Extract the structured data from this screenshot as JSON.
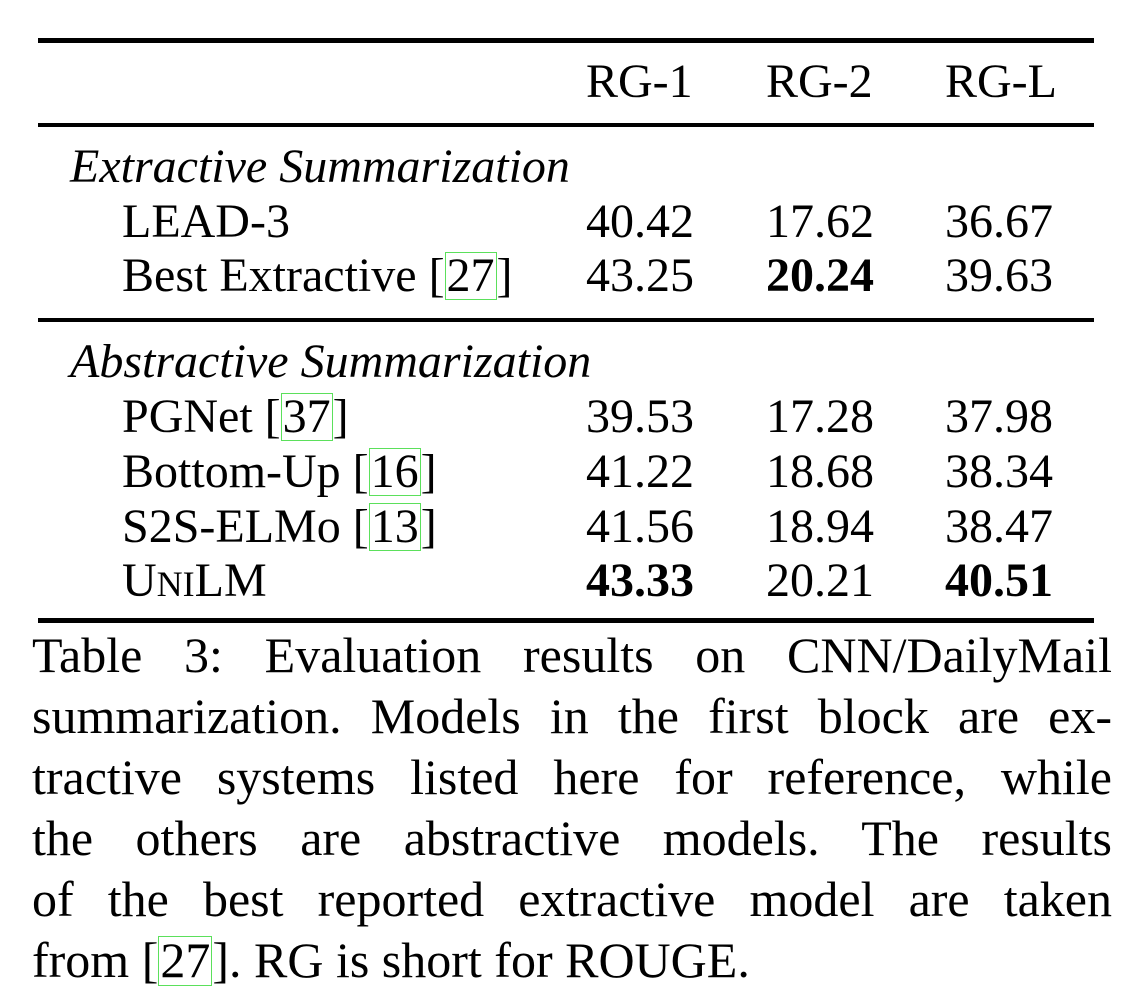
{
  "table": {
    "headers": [
      "RG-1",
      "RG-2",
      "RG-L"
    ],
    "groups": [
      {
        "title": "Extractive Summarization",
        "rows": [
          {
            "model": "LEAD-3",
            "cite": "",
            "values": [
              "40.42",
              "17.62",
              "36.67"
            ]
          },
          {
            "model": "Best Extractive",
            "cite": "27",
            "values": [
              "43.25",
              "20.24",
              "39.63"
            ]
          }
        ]
      },
      {
        "title": "Abstractive Summarization",
        "rows": [
          {
            "model": "PGNet",
            "cite": "37",
            "values": [
              "39.53",
              "17.28",
              "37.98"
            ]
          },
          {
            "model": "Bottom-Up",
            "cite": "16",
            "values": [
              "41.22",
              "18.68",
              "38.34"
            ]
          },
          {
            "model": "S2S-ELMo",
            "cite": "13",
            "values": [
              "41.56",
              "18.94",
              "38.47"
            ]
          },
          {
            "model_prefix": "U",
            "model_small": "NI",
            "model_suffix": "LM",
            "cite": "",
            "values": [
              "43.33",
              "20.21",
              "40.51"
            ]
          }
        ]
      }
    ]
  },
  "caption": {
    "lines": [
      "Table 3: Evaluation results on CNN/DailyMail",
      "summarization. Models in the first block are ex-",
      "tractive systems listed here for reference, while",
      "the others are abstractive models. The results",
      "of the best reported extractive model are taken"
    ],
    "last_prefix": "from [",
    "last_cite": "27",
    "last_suffix": "]. RG is short for ROUGE."
  }
}
